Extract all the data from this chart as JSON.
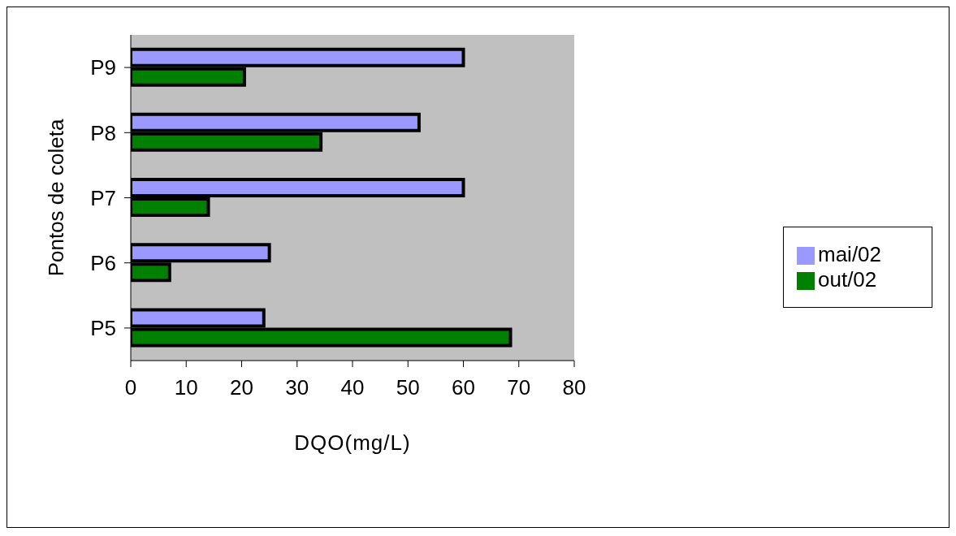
{
  "chart_data": {
    "type": "bar",
    "orientation": "horizontal",
    "xlabel": "DQO(mg/L)",
    "ylabel": "Pontos de coleta",
    "categories": [
      "P9",
      "P8",
      "P7",
      "P6",
      "P5"
    ],
    "series": [
      {
        "name": "mai/02",
        "color": "#9999ff",
        "values": [
          60,
          52,
          60,
          25,
          24
        ]
      },
      {
        "name": "out/02",
        "color": "#008000",
        "values": [
          20.5,
          34.3,
          14,
          7,
          68.5
        ]
      }
    ],
    "xlim": [
      0,
      80
    ],
    "xticks": [
      0,
      10,
      20,
      30,
      40,
      50,
      60,
      70,
      80
    ],
    "grid": false,
    "legend": "right"
  }
}
